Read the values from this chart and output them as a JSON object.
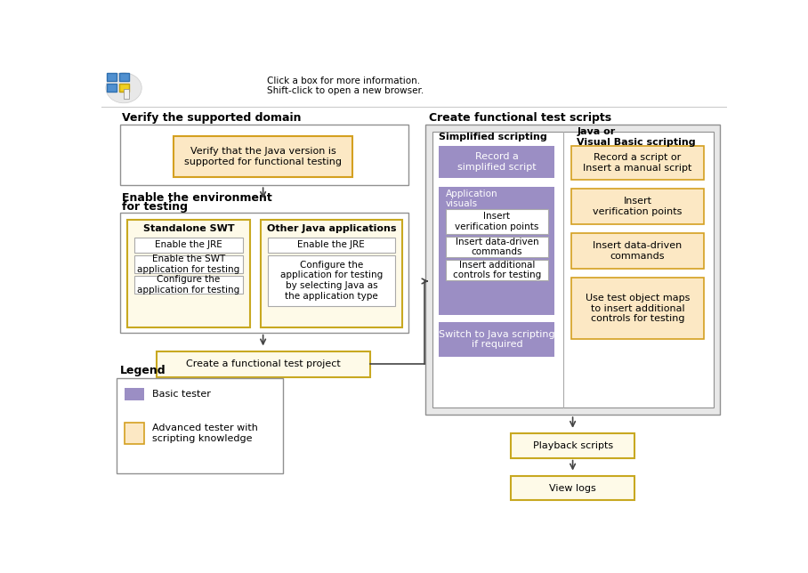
{
  "bg_color": "#ffffff",
  "gray_bg": "#e8e8e8",
  "orange_fill": "#fce8c4",
  "orange_border": "#d4a020",
  "purple_fill": "#9b8ec4",
  "white_fill": "#ffffff",
  "gray_border": "#909090",
  "light_border": "#aaaaaa",
  "yellow_fill": "#fefae8",
  "yellow_border": "#c8a820",
  "section_border": "#909090",
  "section1_title": "Verify the supported domain",
  "box1_text": "Verify that the Java version is\nsupported for functional testing",
  "section2_line1": "Enable the environment",
  "section2_line2": "for testing",
  "subsec_swt_title": "Standalone SWT",
  "swt_items": [
    "Enable the JRE",
    "Enable the SWT\napplication for testing",
    "Configure the\napplication for testing"
  ],
  "subsec_other_title": "Other Java applications",
  "other_items": [
    "Enable the JRE",
    "Configure the\napplication for testing\nby selecting Java as\nthe application type"
  ],
  "box_project_text": "Create a functional test project",
  "section3_title": "Create functional test scripts",
  "col1_title": "Simplified scripting",
  "col1_box1": "Record a\nsimplified script",
  "col1_group_title": "Application\nvisuals",
  "col1_sub1": "Insert\nverification points",
  "col1_sub2": "Insert data-driven\ncommands",
  "col1_sub3": "Insert additional\ncontrols for testing",
  "col1_box2": "Switch to Java scripting\nif required",
  "col2_title": "Java or\nVisual Basic scripting",
  "col2_box1": "Record a script or\nInsert a manual script",
  "col2_box2": "Insert\nverification points",
  "col2_box3": "Insert data-driven\ncommands",
  "col2_box4": "Use test object maps\nto insert additional\ncontrols for testing",
  "box_playback": "Playback scripts",
  "box_viewlogs": "View logs",
  "legend_title": "Legend",
  "legend_basic": "Basic tester",
  "legend_advanced": "Advanced tester with\nscripting knowledge"
}
